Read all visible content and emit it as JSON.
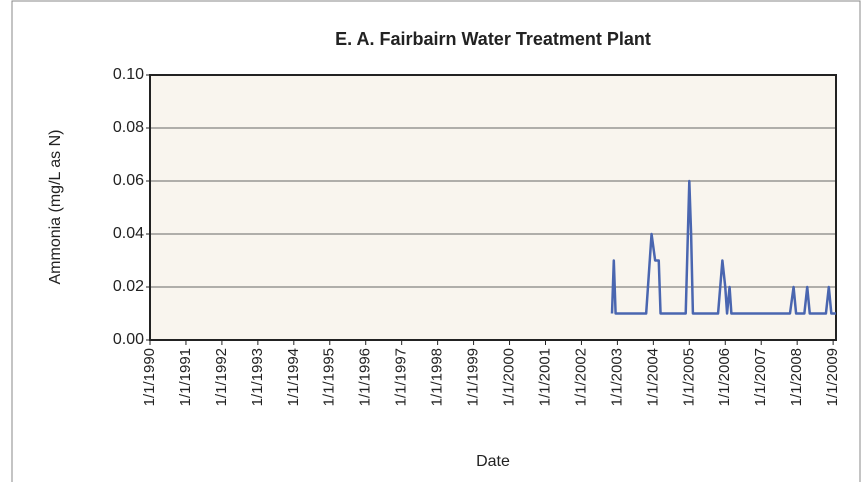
{
  "chart_data": {
    "type": "line",
    "title": "E. A. Fairbairn Water Treatment Plant",
    "xlabel": "Date",
    "ylabel": "Ammonia (mg/L as N)",
    "xlim": [
      1990,
      2009.08
    ],
    "xticks": [
      {
        "value": 1990,
        "label": "1/1/1990"
      },
      {
        "value": 1991,
        "label": "1/1/1991"
      },
      {
        "value": 1992,
        "label": "1/1/1992"
      },
      {
        "value": 1993,
        "label": "1/1/1993"
      },
      {
        "value": 1994,
        "label": "1/1/1994"
      },
      {
        "value": 1995,
        "label": "1/1/1995"
      },
      {
        "value": 1996,
        "label": "1/1/1996"
      },
      {
        "value": 1997,
        "label": "1/1/1997"
      },
      {
        "value": 1998,
        "label": "1/1/1998"
      },
      {
        "value": 1999,
        "label": "1/1/1999"
      },
      {
        "value": 2000,
        "label": "1/1/2000"
      },
      {
        "value": 2001,
        "label": "1/1/2001"
      },
      {
        "value": 2002,
        "label": "1/1/2002"
      },
      {
        "value": 2003,
        "label": "1/1/2003"
      },
      {
        "value": 2004,
        "label": "1/1/2004"
      },
      {
        "value": 2005,
        "label": "1/1/2005"
      },
      {
        "value": 2006,
        "label": "1/1/2006"
      },
      {
        "value": 2007,
        "label": "1/1/2007"
      },
      {
        "value": 2008,
        "label": "1/1/2008"
      },
      {
        "value": 2009,
        "label": "1/1/2009"
      }
    ],
    "ylim": [
      0,
      0.1
    ],
    "yticks": [
      {
        "value": 0,
        "label": "0.00"
      },
      {
        "value": 0.02,
        "label": "0.02"
      },
      {
        "value": 0.04,
        "label": "0.04"
      },
      {
        "value": 0.06,
        "label": "0.06"
      },
      {
        "value": 0.08,
        "label": "0.08"
      },
      {
        "value": 0.1,
        "label": "0.10"
      }
    ],
    "grid": true,
    "series": [
      {
        "color": "#4a66b0",
        "x": [
          2002.85,
          2002.9,
          2002.95,
          2003.8,
          2003.95,
          2004.05,
          2004.15,
          2004.2,
          2004.9,
          2005.0,
          2005.05,
          2005.1,
          2005.8,
          2005.92,
          2006.0,
          2006.05,
          2006.12,
          2006.17,
          2007.8,
          2007.9,
          2007.97,
          2008.2,
          2008.28,
          2008.35,
          2008.8,
          2008.88,
          2008.95,
          2009.08
        ],
        "values": [
          0.01,
          0.03,
          0.01,
          0.01,
          0.04,
          0.03,
          0.03,
          0.01,
          0.01,
          0.06,
          0.04,
          0.01,
          0.01,
          0.03,
          0.02,
          0.01,
          0.02,
          0.01,
          0.01,
          0.02,
          0.01,
          0.01,
          0.02,
          0.01,
          0.01,
          0.02,
          0.01,
          0.01
        ]
      }
    ]
  }
}
